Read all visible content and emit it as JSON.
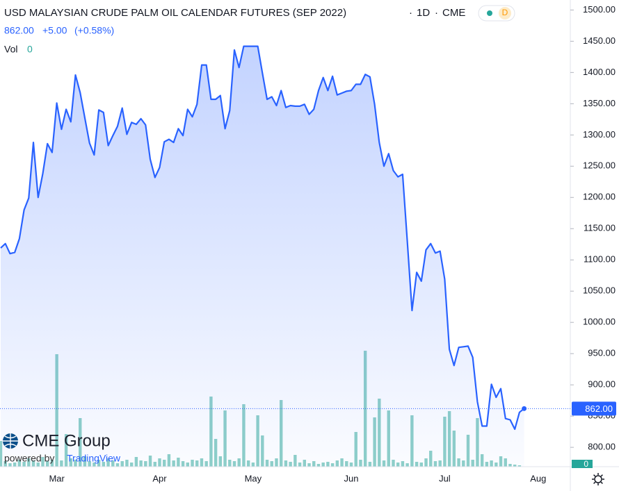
{
  "header": {
    "title": "USD MALAYSIAN CRUDE PALM OIL CALENDAR FUTURES (SEP 2022)",
    "interval": "1D",
    "exchange": "CME",
    "badge": "D",
    "last": "862.00",
    "change": "+5.00",
    "change_pct": "(+0.58%)",
    "vol_label": "Vol",
    "vol_value": 0
  },
  "watermark": {
    "brand": "CME Group",
    "powered_by": "powered by",
    "platform": "TradingView"
  },
  "chart_data": [
    {
      "type": "area",
      "color": "#2962ff",
      "last_label": "862.00",
      "categories": [
        null,
        null,
        null,
        null,
        null,
        null,
        null,
        null,
        null,
        null,
        null,
        null,
        "Mar",
        null,
        null,
        null,
        null,
        null,
        null,
        null,
        null,
        null,
        null,
        null,
        null,
        null,
        null,
        null,
        null,
        null,
        null,
        null,
        null,
        null,
        "Apr",
        null,
        null,
        null,
        null,
        null,
        null,
        null,
        null,
        null,
        null,
        null,
        null,
        null,
        null,
        null,
        null,
        null,
        null,
        null,
        "May",
        null,
        null,
        null,
        null,
        null,
        null,
        null,
        null,
        null,
        null,
        null,
        null,
        null,
        null,
        null,
        null,
        null,
        null,
        null,
        null,
        "Jun",
        null,
        null,
        null,
        null,
        null,
        null,
        null,
        null,
        null,
        null,
        null,
        null,
        null,
        null,
        null,
        null,
        null,
        null,
        null,
        "Jul",
        null,
        null,
        null,
        null,
        null,
        null,
        null,
        null,
        null,
        null,
        null,
        null,
        null,
        null,
        null,
        null,
        null,
        null,
        null,
        "Aug"
      ],
      "values": [
        1119,
        1126,
        1110,
        1112,
        1134,
        1180,
        1199,
        1288,
        1200,
        1238,
        1286,
        1272,
        1351,
        1309,
        1341,
        1321,
        1396,
        1368,
        1327,
        1287,
        1268,
        1340,
        1336,
        1283,
        1299,
        1314,
        1343,
        1301,
        1320,
        1317,
        1326,
        1316,
        1261,
        1232,
        1248,
        1289,
        1293,
        1288,
        1310,
        1299,
        1341,
        1329,
        1349,
        1412,
        1412,
        1357,
        1357,
        1363,
        1310,
        1339,
        1436,
        1408,
        1442,
        1442,
        1442,
        1442,
        1399,
        1357,
        1361,
        1347,
        1371,
        1344,
        1347,
        1346,
        1346,
        1349,
        1333,
        1341,
        1371,
        1392,
        1371,
        1394,
        1364,
        1367,
        1370,
        1371,
        1381,
        1381,
        1397,
        1393,
        1349,
        1288,
        1250,
        1270,
        1243,
        1233,
        1237,
        1130,
        1019,
        1080,
        1066,
        1116,
        1126,
        1111,
        1114,
        1069,
        957,
        931,
        960,
        961,
        962,
        944,
        873,
        834,
        834,
        901,
        880,
        894,
        846,
        844,
        829,
        856,
        862,
        null,
        null,
        null
      ],
      "ylim": [
        769,
        1516
      ],
      "yticks": [
        {
          "value": 800,
          "label": "800.00"
        },
        {
          "value": 850,
          "label": "850.00"
        },
        {
          "value": 900,
          "label": "900.00"
        },
        {
          "value": 950,
          "label": "950.00"
        },
        {
          "value": 1000,
          "label": "1000.00"
        },
        {
          "value": 1050,
          "label": "1050.00"
        },
        {
          "value": 1100,
          "label": "1100.00"
        },
        {
          "value": 1150,
          "label": "1150.00"
        },
        {
          "value": 1200,
          "label": "1200.00"
        },
        {
          "value": 1250,
          "label": "1250.00"
        },
        {
          "value": 1300,
          "label": "1300.00"
        },
        {
          "value": 1350,
          "label": "1350.00"
        },
        {
          "value": 1400,
          "label": "1400.00"
        },
        {
          "value": 1450,
          "label": "1450.00"
        },
        {
          "value": 1500,
          "label": "1500.00"
        }
      ]
    },
    {
      "type": "bar",
      "color": "#8fd0c8",
      "values": [
        37,
        8,
        5,
        6,
        10,
        7,
        12,
        9,
        6,
        14,
        8,
        10,
        162,
        9,
        47,
        12,
        10,
        70,
        15,
        8,
        6,
        10,
        7,
        12,
        9,
        5,
        8,
        10,
        6,
        14,
        9,
        8,
        16,
        7,
        12,
        10,
        18,
        9,
        13,
        8,
        6,
        10,
        9,
        12,
        8,
        101,
        40,
        15,
        81,
        10,
        8,
        12,
        90,
        9,
        6,
        74,
        45,
        10,
        8,
        12,
        96,
        9,
        7,
        17,
        6,
        10,
        5,
        8,
        4,
        6,
        7,
        5,
        9,
        12,
        8,
        6,
        50,
        10,
        167,
        7,
        71,
        98,
        9,
        81,
        10,
        6,
        8,
        5,
        74,
        7,
        6,
        12,
        23,
        8,
        9,
        72,
        80,
        52,
        12,
        9,
        46,
        10,
        70,
        18,
        7,
        9,
        6,
        15,
        12,
        4,
        3,
        2,
        0,
        null,
        null,
        null
      ],
      "ylim": [
        0,
        200
      ]
    }
  ]
}
